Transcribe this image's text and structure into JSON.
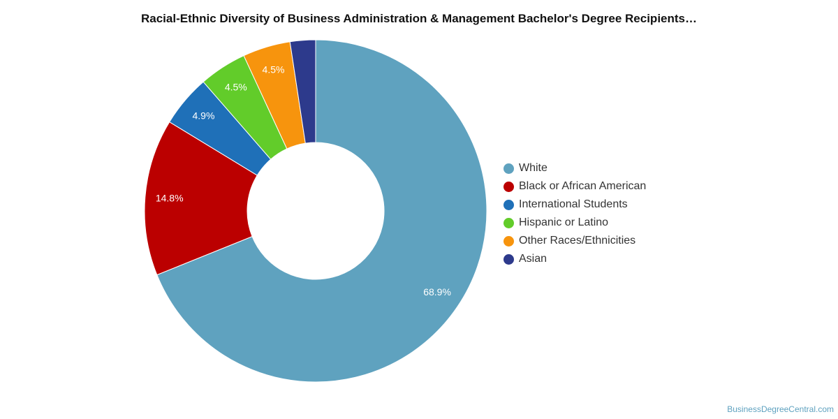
{
  "title": "Racial-Ethnic Diversity of Business Administration & Management Bachelor's Degree Recipients…",
  "source": "BusinessDegreeCentral.com",
  "chart_data": {
    "type": "pie",
    "variant": "donut",
    "title": "Racial-Ethnic Diversity of Business Administration & Management Bachelor's Degree Recipients…",
    "legend_position": "right",
    "categories": [
      "White",
      "Black or African American",
      "International Students",
      "Hispanic or Latino",
      "Other Races/Ethnicities",
      "Asian"
    ],
    "values": [
      68.9,
      14.8,
      4.9,
      4.5,
      4.5,
      2.4
    ],
    "value_labels": [
      "68.9%",
      "14.8%",
      "4.9%",
      "4.5%",
      "4.5%",
      ""
    ],
    "colors": [
      "#5fa2bf",
      "#bb0000",
      "#1f70b8",
      "#62cc2a",
      "#f7940d",
      "#2d3a8c"
    ]
  }
}
